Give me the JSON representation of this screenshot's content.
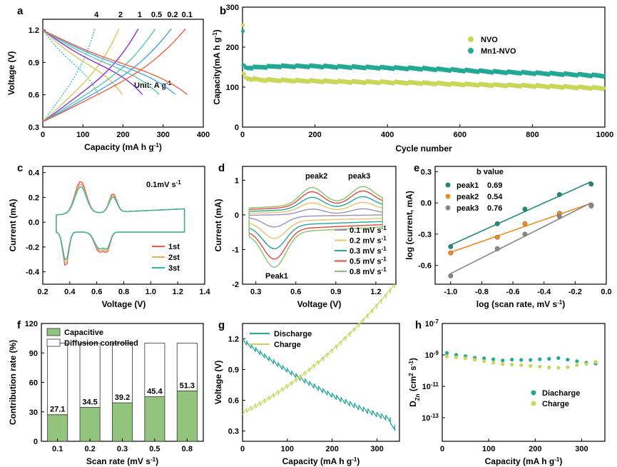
{
  "colors": {
    "nvo": "#c8d65a",
    "mn1nvo": "#22a895",
    "cv1": "#ef5a3c",
    "cv2": "#e9a95a",
    "cv3": "#2db5a5",
    "sr01": "#9a90c2",
    "sr02": "#e8c36b",
    "sr03": "#22a895",
    "sr05": "#e8473b",
    "sr08": "#8cc26a",
    "peak1": "#1e8a78",
    "peak2": "#f08c1e",
    "peak3": "#888888",
    "capacitive": "#93c47d",
    "rate4": "#2ec4b0",
    "rate2": "#e0c45a",
    "rate1": "#8a2be2",
    "rate05": "#5bc8b5",
    "rate02": "#4aa3ea",
    "rate01": "#f0623c"
  },
  "chart_data": [
    {
      "id": "a",
      "type": "line",
      "panel_label": "a",
      "xlabel": "Capacity (mA h g",
      "xlabel_sup": "-1",
      "xlabel_end": ")",
      "ylabel": "Voltage (V)",
      "xlim": [
        0,
        400
      ],
      "ylim": [
        0.3,
        1.3
      ],
      "xticks": [
        "0",
        "100",
        "200",
        "300",
        "400"
      ],
      "xtick_values": [
        0,
        100,
        200,
        300,
        400
      ],
      "yticks": [
        "0.3",
        "0.6",
        "0.9",
        "1.2"
      ],
      "ytick_values": [
        0.3,
        0.6,
        0.9,
        1.2
      ],
      "annotation": "Unit: A g",
      "annotation_sup": "-1",
      "rates": [
        "4",
        "2",
        "1",
        "0.5",
        "0.2",
        "0.1"
      ],
      "discharge_capacity": [
        138,
        198,
        248,
        290,
        330,
        360
      ],
      "charge_capacity": [
        130,
        190,
        238,
        280,
        320,
        356
      ]
    },
    {
      "id": "b",
      "type": "scatter",
      "panel_label": "b",
      "xlabel": "Cycle number",
      "ylabel": "Capacity(mA h g",
      "ylabel_sup": "-1",
      "ylabel_end": ")",
      "xlim": [
        0,
        1000
      ],
      "ylim": [
        0,
        300
      ],
      "xticks": [
        "0",
        "200",
        "400",
        "600",
        "800",
        "1000"
      ],
      "xtick_values": [
        0,
        200,
        400,
        600,
        800,
        1000
      ],
      "yticks": [
        "0",
        "100",
        "200",
        "300"
      ],
      "ytick_values": [
        0,
        100,
        200,
        300
      ],
      "legend_position": "top-right",
      "series": [
        {
          "name": "NVO",
          "x": [
            1,
            2,
            10,
            50,
            100,
            200,
            300,
            400,
            500,
            600,
            700,
            800,
            900,
            1000
          ],
          "y": [
            255,
            135,
            122,
            118,
            117,
            115,
            113,
            112,
            110,
            107,
            105,
            103,
            100,
            97
          ]
        },
        {
          "name": "Mn1-NVO",
          "x": [
            1,
            2,
            10,
            50,
            100,
            200,
            300,
            400,
            500,
            600,
            700,
            800,
            900,
            1000
          ],
          "y": [
            240,
            155,
            148,
            150,
            152,
            152,
            150,
            148,
            146,
            142,
            138,
            135,
            132,
            128
          ]
        }
      ]
    },
    {
      "id": "c",
      "type": "line",
      "panel_label": "c",
      "xlabel": "Voltage (V)",
      "ylabel": "Current (mA)",
      "xlim": [
        0.2,
        1.4
      ],
      "ylim": [
        -0.5,
        0.45
      ],
      "xticks": [
        "0.2",
        "0.4",
        "0.6",
        "0.8",
        "1.0",
        "1.2",
        "1.4"
      ],
      "xtick_values": [
        0.2,
        0.4,
        0.6,
        0.8,
        1.0,
        1.2,
        1.4
      ],
      "yticks": [
        "-0.4",
        "-0.2",
        "0.0",
        "0.2",
        "0.4"
      ],
      "ytick_values": [
        -0.4,
        -0.2,
        0.0,
        0.2,
        0.4
      ],
      "annotation": "0.1mV s",
      "annotation_sup": "-1",
      "legend_position": "bottom-right",
      "series": [
        {
          "name": "1st"
        },
        {
          "name": "2st"
        },
        {
          "name": "3st"
        }
      ]
    },
    {
      "id": "d",
      "type": "line",
      "panel_label": "d",
      "xlabel": "Voltage (V)",
      "ylabel": "Current (mA)",
      "xlim": [
        0.2,
        1.35
      ],
      "ylim": [
        -2,
        1.4
      ],
      "xticks": [
        "0.3",
        "0.6",
        "0.9",
        "1.2"
      ],
      "xtick_values": [
        0.3,
        0.6,
        0.9,
        1.2
      ],
      "yticks": [
        "-2",
        "-1",
        "0",
        "1"
      ],
      "ytick_values": [
        -2,
        -1,
        0,
        1
      ],
      "annotations": [
        "peak2",
        "peak3",
        "Peak1"
      ],
      "legend_position": "bottom-right",
      "series": [
        {
          "name": "0.1 mV s",
          "sup": "-1",
          "scale": 0.3
        },
        {
          "name": "0.2 mV s",
          "sup": "-1",
          "scale": 0.5
        },
        {
          "name": "0.3 mV s",
          "sup": "-1",
          "scale": 0.68
        },
        {
          "name": "0.5 mV s",
          "sup": "-1",
          "scale": 0.86
        },
        {
          "name": "0.8 mV s",
          "sup": "-1",
          "scale": 1.0
        }
      ]
    },
    {
      "id": "e",
      "type": "scatter",
      "panel_label": "e",
      "xlabel": "log (scan rate, mV s",
      "xlabel_sup": "-1",
      "xlabel_end": ")",
      "ylabel": "log (current, mA)",
      "xlim": [
        -1.1,
        0.0
      ],
      "ylim": [
        -0.78,
        0.35
      ],
      "xticks": [
        "-1.0",
        "-0.8",
        "-0.6",
        "-0.4",
        "-0.2",
        "0.0"
      ],
      "xtick_values": [
        -1.0,
        -0.8,
        -0.6,
        -0.4,
        -0.2,
        0.0
      ],
      "yticks": [
        "-0.6",
        "-0.3",
        "0.0",
        "0.3"
      ],
      "ytick_values": [
        -0.6,
        -0.3,
        0.0,
        0.3
      ],
      "legend_title": "b value",
      "legend_position": "top-left",
      "x": [
        -1.0,
        -0.7,
        -0.523,
        -0.301,
        -0.097
      ],
      "series": [
        {
          "name": "peak1",
          "b": "0.69",
          "y": [
            -0.42,
            -0.2,
            -0.06,
            0.08,
            0.18
          ]
        },
        {
          "name": "peak2",
          "b": "0.54",
          "y": [
            -0.48,
            -0.33,
            -0.2,
            -0.1,
            -0.02
          ]
        },
        {
          "name": "peak3",
          "b": "0.76",
          "y": [
            -0.7,
            -0.44,
            -0.3,
            -0.13,
            -0.03
          ]
        }
      ]
    },
    {
      "id": "f",
      "type": "bar",
      "panel_label": "f",
      "xlabel": "Scan rate (mV s",
      "xlabel_sup": "-1",
      "xlabel_end": ")",
      "ylabel": "Contribution rate (%)",
      "categories": [
        "0.1",
        "0.2",
        "0.3",
        "0.5",
        "0.8"
      ],
      "ylim": [
        0,
        120
      ],
      "yticks": [
        "0",
        "30",
        "60",
        "90",
        "120"
      ],
      "ytick_values": [
        0,
        30,
        60,
        90,
        120
      ],
      "legend_position": "top-left",
      "series": [
        {
          "name": "Capacitive",
          "values": [
            27.1,
            34.5,
            39.2,
            45.4,
            51.3
          ],
          "labels": [
            "27.1",
            "34.5",
            "39.2",
            "45.4",
            "51.3"
          ]
        },
        {
          "name": "Diffusion controlled",
          "values": [
            72.9,
            65.5,
            60.8,
            54.6,
            48.7
          ]
        }
      ]
    },
    {
      "id": "g",
      "type": "line",
      "panel_label": "g",
      "xlabel": "Capacity (mA h g",
      "xlabel_sup": "-1",
      "xlabel_end": ")",
      "ylabel": "Voltage (V)",
      "xlim": [
        0,
        350
      ],
      "ylim": [
        0.2,
        1.35
      ],
      "xticks": [
        "0",
        "100",
        "200",
        "300"
      ],
      "xtick_values": [
        0,
        100,
        200,
        300
      ],
      "yticks": [
        "0.3",
        "0.6",
        "0.9",
        "1.2"
      ],
      "ytick_values": [
        0.3,
        0.6,
        0.9,
        1.2
      ],
      "legend_position": "top-left",
      "series": [
        {
          "name": "Discharge"
        },
        {
          "name": "Charge"
        }
      ]
    },
    {
      "id": "h",
      "type": "scatter",
      "panel_label": "h",
      "xlabel": "Capacity (mA h g",
      "xlabel_sup": "-1",
      "xlabel_end": ")",
      "ylabel_main": "D",
      "ylabel_sub": "Zn",
      "ylabel_mid": " (cm",
      "ylabel_sup1": "2",
      "ylabel_mid2": " s",
      "ylabel_sup2": "-1",
      "ylabel_end": ")",
      "xlim": [
        0,
        350
      ],
      "ylog_range": [
        -14.5,
        -7
      ],
      "xticks": [
        "0",
        "100",
        "200",
        "300"
      ],
      "xtick_values": [
        0,
        100,
        200,
        300
      ],
      "ytick_exponents": [
        "-7",
        "-9",
        "-11",
        "-13"
      ],
      "ytick_values": [
        -7,
        -9,
        -11,
        -13
      ],
      "ytick_base": "10",
      "legend_position": "bottom-right",
      "series": [
        {
          "name": "Diacharge",
          "x": [
            10,
            30,
            50,
            70,
            90,
            110,
            130,
            150,
            170,
            190,
            210,
            230,
            250,
            270,
            290,
            310,
            330
          ],
          "y": [
            -8.88,
            -9.0,
            -9.08,
            -9.18,
            -9.22,
            -9.28,
            -9.35,
            -9.3,
            -9.32,
            -9.32,
            -9.28,
            -9.25,
            -9.2,
            -9.3,
            -9.4,
            -9.5,
            -9.55
          ]
        },
        {
          "name": "Charge",
          "x": [
            10,
            30,
            50,
            70,
            90,
            110,
            130,
            150,
            170,
            190,
            210,
            230,
            250,
            270,
            290,
            310,
            330
          ],
          "y": [
            -9.1,
            -9.15,
            -9.22,
            -9.3,
            -9.4,
            -9.5,
            -9.58,
            -9.62,
            -9.65,
            -9.7,
            -9.75,
            -9.8,
            -9.82,
            -9.78,
            -9.65,
            -9.58,
            -9.45
          ]
        }
      ]
    }
  ]
}
